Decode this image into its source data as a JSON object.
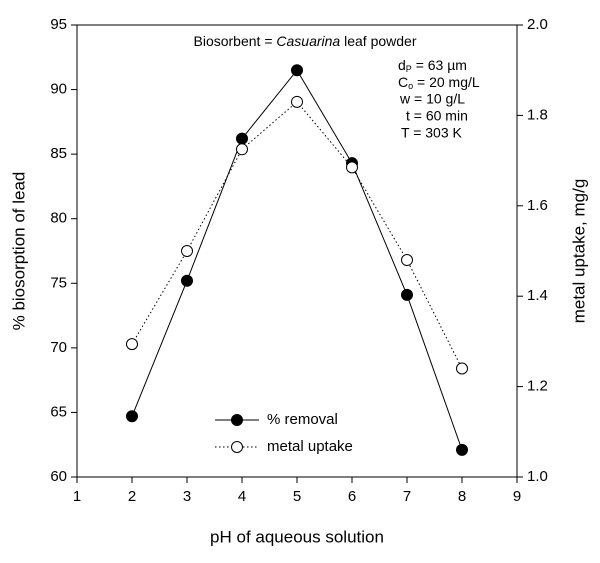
{
  "chart_data": {
    "type": "line",
    "xlabel": "pH of aqueous solution",
    "ylabel": "% biosorption of lead",
    "y2label": "metal uptake, mg/g",
    "annotations": [
      [
        "Biosorbent = ",
        "Casuarina",
        " leaf powder"
      ],
      [
        "d",
        "P",
        " = 63 µm"
      ],
      [
        "C",
        "o",
        " = 20 mg/L"
      ],
      [
        "w = 10 g/L"
      ],
      [
        "t = 60 min"
      ],
      [
        "T = 303 K"
      ]
    ],
    "x": [
      2,
      3,
      4,
      5,
      6,
      7,
      8
    ],
    "xlim": [
      1,
      9
    ],
    "xticks": [
      1,
      2,
      3,
      4,
      5,
      6,
      7,
      8,
      9
    ],
    "ylim": [
      60,
      95
    ],
    "yticks": [
      60,
      65,
      70,
      75,
      80,
      85,
      90,
      95
    ],
    "y2lim": [
      1,
      2
    ],
    "y2ticks": [
      {
        "value": 1,
        "label": "1.0"
      },
      1.2,
      1.4,
      1.6,
      1.8,
      {
        "value": 2,
        "label": "2.0"
      }
    ],
    "legend": "lower center",
    "series": [
      {
        "name": "% removal",
        "color": "#000000",
        "marker": "filled",
        "linestyle": "solid",
        "values": [
          64.7,
          75.2,
          86.2,
          91.5,
          84.3,
          74.1,
          62.1
        ]
      },
      {
        "name": "metal uptake",
        "color": "#000000",
        "marker": "open",
        "linestyle": "dotted",
        "axis": "y2",
        "values": [
          1.294,
          1.5,
          1.725,
          1.83,
          1.685,
          1.48,
          1.24
        ]
      }
    ]
  }
}
